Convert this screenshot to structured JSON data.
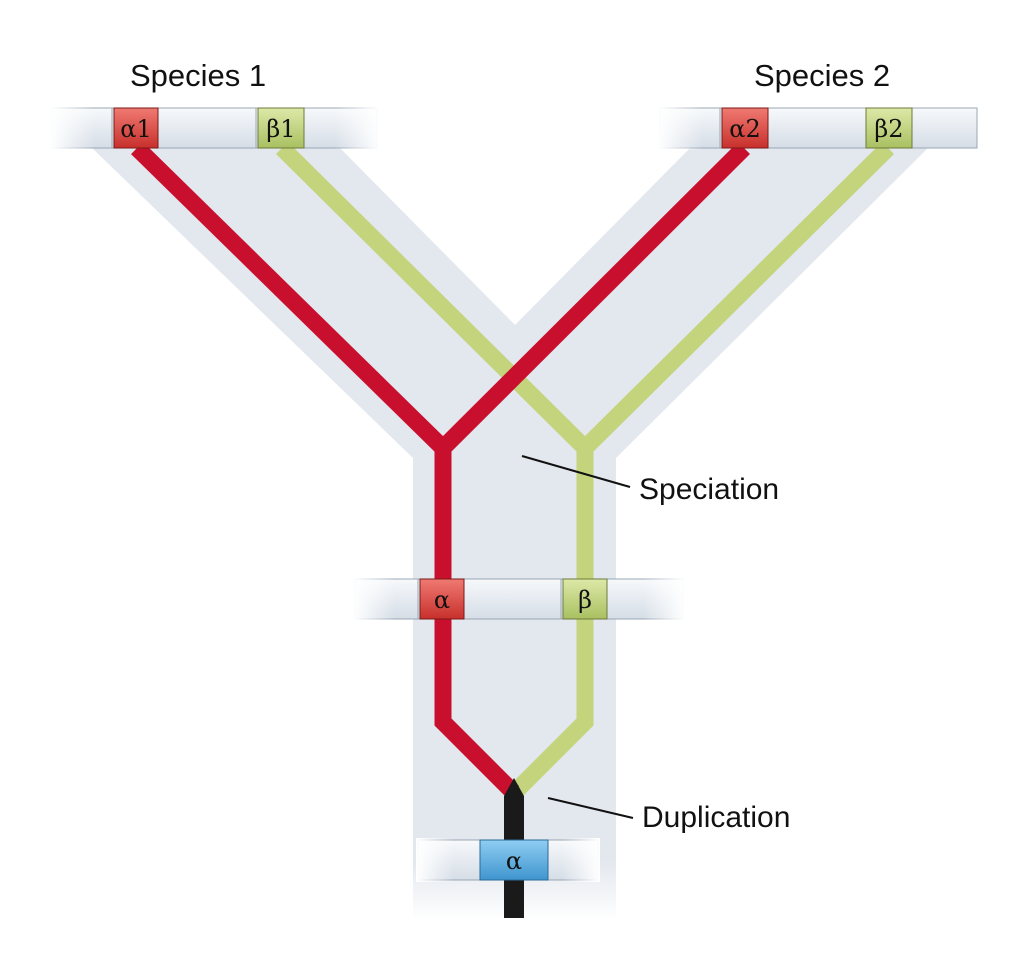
{
  "species": {
    "one": "Species 1",
    "two": "Species 2"
  },
  "events": {
    "speciation": "Speciation",
    "duplication": "Duplication"
  },
  "genes": {
    "ancestral": "α",
    "alpha": "α",
    "beta": "β",
    "alpha1": "α1",
    "beta1": "β1",
    "alpha2": "α2",
    "beta2": "β2"
  },
  "colors": {
    "alpha_lineage": "#c8102e",
    "beta_lineage": "#c3d47c",
    "ancestral_lineage": "#1a1a1a",
    "tree_shade": "#e3e7ee",
    "chromosome": "#eef2f6",
    "alpha_gene": "#e0564f",
    "beta_gene": "#c8dc8c",
    "ancestral_gene": "#5fb3e6"
  }
}
